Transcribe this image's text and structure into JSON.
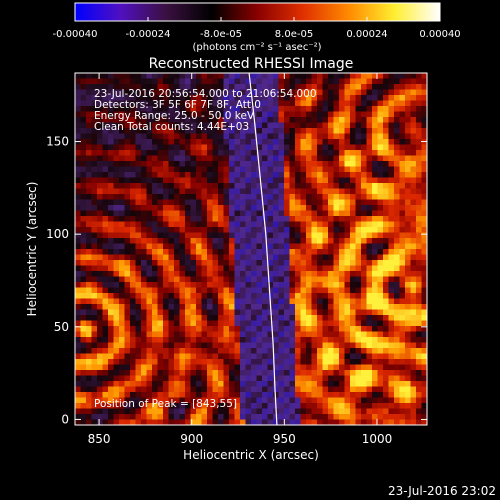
{
  "chart_data": {
    "type": "heatmap",
    "title": "Reconstructed RHESSI Image",
    "colorbar": {
      "tick_labels": [
        "-0.00040",
        "-0.00024",
        "-8.0e-05",
        "8.0e-05",
        "0.00024",
        "0.00040"
      ],
      "tick_values": [
        -0.0004,
        -0.00024,
        -8e-05,
        8e-05,
        0.00024,
        0.0004
      ],
      "range": [
        -0.0004,
        0.0004
      ],
      "unit_label": "(photons cm⁻² s⁻¹ asec⁻²)",
      "colors": [
        "#0000ff",
        "#5010c0",
        "#3a1040",
        "#000000",
        "#8a0000",
        "#e03000",
        "#ff8a00",
        "#ffee30",
        "#ffffff"
      ]
    },
    "annotations": {
      "time_range": "23-Jul-2016 20:56:54.000 to 21:06:54.000",
      "detectors": "Detectors: 3F 5F 6F 7F 8F, Att 0",
      "energy": "Energy Range: 25.0 - 50.0 keV",
      "clean": "Clean     Total counts: 4.44E+03",
      "peak": "Position of Peak = [843,55]"
    },
    "x_axis": {
      "label": "Heliocentric X (arcsec)",
      "range": [
        837,
        1027
      ],
      "ticks": [
        850,
        900,
        950,
        1000
      ],
      "tick_labels": [
        "850",
        "900",
        "950",
        "1000"
      ]
    },
    "y_axis": {
      "label": "Heliocentric Y (arcsec)",
      "range": [
        -3,
        187
      ],
      "ticks": [
        0,
        50,
        100,
        150
      ],
      "tick_labels": [
        "0",
        "50",
        "100",
        "150"
      ]
    },
    "limb_curve": {
      "x": [
        931,
        934,
        937,
        940,
        942,
        944,
        945,
        946
      ],
      "y": [
        187,
        160,
        130,
        100,
        70,
        40,
        15,
        -3
      ]
    },
    "peak_position": [
      843,
      55
    ],
    "footer_timestamp": "23-Jul-2016 23:02"
  }
}
